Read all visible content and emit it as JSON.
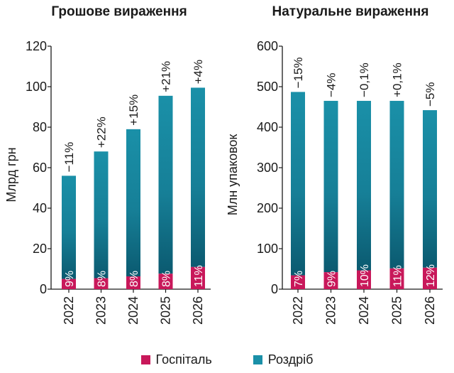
{
  "colors": {
    "hospital": "#c8185a",
    "retail_top": "#1a90a8",
    "retail_bottom": "#0b5a70",
    "axis": "#1a1a1a"
  },
  "legend": [
    {
      "name": "Госпіталь",
      "color": "#c8185a"
    },
    {
      "name": "Роздріб",
      "color": "#1a90a8"
    }
  ],
  "chart_data": [
    {
      "type": "bar",
      "stacked": true,
      "title": "Грошове вираження",
      "ylabel": "Млрд грн",
      "ylim": [
        0,
        120
      ],
      "yticks": [
        0,
        20,
        40,
        60,
        80,
        100,
        120
      ],
      "categories": [
        "2022",
        "2023",
        "2024",
        "2025",
        "2026"
      ],
      "totals": [
        56,
        68,
        79,
        95.5,
        99.5
      ],
      "growth_labels": [
        "−11%",
        "+22%",
        "+15%",
        "+21%",
        "+4%"
      ],
      "series": [
        {
          "name": "Госпіталь",
          "values": [
            5.04,
            5.44,
            6.32,
            7.64,
            10.95
          ],
          "labels": [
            "9%",
            "8%",
            "8%",
            "8%",
            "11%"
          ]
        },
        {
          "name": "Роздріб",
          "values": [
            50.96,
            62.56,
            72.68,
            87.86,
            88.55
          ]
        }
      ]
    },
    {
      "type": "bar",
      "stacked": true,
      "title": "Натуральне вираження",
      "ylabel": "Млн упаковок",
      "ylim": [
        0,
        600
      ],
      "yticks": [
        0,
        100,
        200,
        300,
        400,
        500,
        600
      ],
      "categories": [
        "2022",
        "2023",
        "2024",
        "2025",
        "2026"
      ],
      "totals": [
        487,
        465,
        465,
        465,
        442
      ],
      "growth_labels": [
        "−15%",
        "−4%",
        "−0,1%",
        "+0,1%",
        "−5%"
      ],
      "series": [
        {
          "name": "Госпіталь",
          "values": [
            34.1,
            41.9,
            46.5,
            51.2,
            53.0
          ],
          "labels": [
            "7%",
            "9%",
            "10%",
            "11%",
            "12%"
          ]
        },
        {
          "name": "Роздріб",
          "values": [
            452.9,
            423.1,
            418.5,
            413.8,
            389.0
          ]
        }
      ]
    }
  ]
}
